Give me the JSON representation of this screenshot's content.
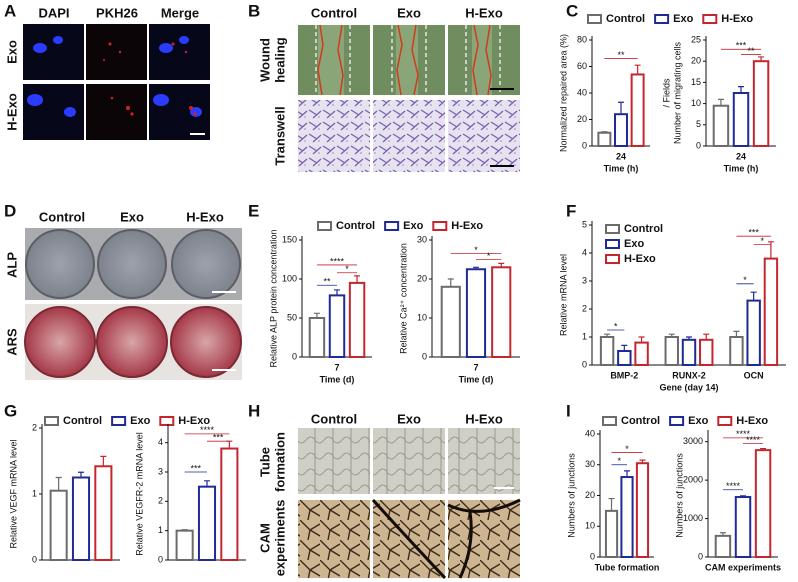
{
  "figure": {
    "A": {
      "letter": "A",
      "columns": [
        "DAPI",
        "PKH26",
        "Merge"
      ],
      "rows": [
        "Exo",
        "H-Exo"
      ]
    },
    "B": {
      "letter": "B",
      "columns": [
        "Control",
        "Exo",
        "H-Exo"
      ],
      "rows": [
        [
          "Wound",
          "healing"
        ],
        [
          "Transwell"
        ]
      ]
    },
    "C": {
      "letter": "C"
    },
    "D": {
      "letter": "D",
      "columns": [
        "Control",
        "Exo",
        "H-Exo"
      ],
      "rows": [
        "ALP",
        "ARS"
      ]
    },
    "E": {
      "letter": "E"
    },
    "F": {
      "letter": "F"
    },
    "G": {
      "letter": "G"
    },
    "H": {
      "letter": "H",
      "columns": [
        "Control",
        "Exo",
        "H-Exo"
      ],
      "rows": [
        [
          "Tube",
          "formation"
        ],
        [
          "CAM",
          "experiments"
        ]
      ]
    },
    "I": {
      "letter": "I"
    }
  },
  "chart_data": [
    {
      "type": "bar",
      "ylabel": "Normalized repaired area (%)",
      "xlabel": "Time (h)",
      "categories": [
        "24"
      ],
      "legend": "top",
      "series": [
        {
          "name": "Control",
          "color": "#6b6b6b",
          "values": [
            10
          ],
          "errors": [
            0.8
          ]
        },
        {
          "name": "Exo",
          "color": "#1f2a96",
          "values": [
            24
          ],
          "errors": [
            9
          ]
        },
        {
          "name": "H-Exo",
          "color": "#c4262e",
          "values": [
            54
          ],
          "errors": [
            7
          ]
        }
      ],
      "ylim": [
        0,
        80
      ],
      "yticks": [
        0,
        20,
        40,
        60,
        80
      ],
      "annotations": [
        {
          "label": "**",
          "pair": [
            "Control",
            "H-Exo"
          ],
          "y": 66
        }
      ]
    },
    {
      "type": "bar",
      "ylabel": [
        "Number of migrating cells",
        "/ Fields"
      ],
      "xlabel": "Time (h)",
      "categories": [
        "24"
      ],
      "series": [
        {
          "name": "Control",
          "color": "#6b6b6b",
          "values": [
            9.5
          ],
          "errors": [
            1.5
          ]
        },
        {
          "name": "Exo",
          "color": "#1f2a96",
          "values": [
            12.5
          ],
          "errors": [
            1.5
          ]
        },
        {
          "name": "H-Exo",
          "color": "#c4262e",
          "values": [
            20
          ],
          "errors": [
            1
          ]
        }
      ],
      "ylim": [
        0,
        25
      ],
      "yticks": [
        0,
        5,
        10,
        15,
        20,
        25
      ],
      "annotations": [
        {
          "label": "***",
          "pair": [
            "Control",
            "H-Exo"
          ],
          "y": 22.8
        },
        {
          "label": "**",
          "pair": [
            "Exo",
            "H-Exo"
          ],
          "y": 21.6
        }
      ]
    },
    {
      "type": "bar",
      "ylabel": "Relative ALP protein concentration",
      "xlabel": "Time (d)",
      "categories": [
        "7"
      ],
      "legend": "top",
      "series": [
        {
          "name": "Control",
          "color": "#6b6b6b",
          "values": [
            50
          ],
          "errors": [
            6
          ]
        },
        {
          "name": "Exo",
          "color": "#1f2a96",
          "values": [
            79
          ],
          "errors": [
            7
          ]
        },
        {
          "name": "H-Exo",
          "color": "#c4262e",
          "values": [
            95
          ],
          "errors": [
            9
          ]
        }
      ],
      "ylim": [
        0,
        150
      ],
      "yticks": [
        0,
        50,
        100,
        150
      ],
      "annotations": [
        {
          "label": "****",
          "pair": [
            "Control",
            "H-Exo"
          ],
          "y": 118
        },
        {
          "label": "*",
          "pair": [
            "Exo",
            "H-Exo"
          ],
          "y": 108
        },
        {
          "label": "**",
          "pair": [
            "Control",
            "Exo"
          ],
          "y": 92
        }
      ]
    },
    {
      "type": "bar",
      "ylabel": "Relative Ca²⁺ concentration",
      "xlabel": "Time (d)",
      "categories": [
        "7"
      ],
      "series": [
        {
          "name": "Control",
          "color": "#6b6b6b",
          "values": [
            18
          ],
          "errors": [
            2
          ]
        },
        {
          "name": "Exo",
          "color": "#1f2a96",
          "values": [
            22.5
          ],
          "errors": [
            0.5
          ]
        },
        {
          "name": "H-Exo",
          "color": "#c4262e",
          "values": [
            23
          ],
          "errors": [
            1
          ]
        }
      ],
      "ylim": [
        0,
        30
      ],
      "yticks": [
        0,
        10,
        20,
        30
      ],
      "annotations": [
        {
          "label": "*",
          "pair": [
            "Control",
            "H-Exo"
          ],
          "y": 26.5
        },
        {
          "label": "*",
          "pair": [
            "Exo",
            "H-Exo"
          ],
          "y": 25
        }
      ]
    },
    {
      "type": "bar",
      "ylabel": "Relative mRNA level",
      "xlabel": "Gene (day 14)",
      "categories": [
        "BMP-2",
        "RUNX-2",
        "OCN"
      ],
      "legend": "upper left",
      "series": [
        {
          "name": "Control",
          "color": "#6b6b6b",
          "values": [
            1,
            1,
            1
          ],
          "errors": [
            0.1,
            0.1,
            0.2
          ]
        },
        {
          "name": "Exo",
          "color": "#1f2a96",
          "values": [
            0.5,
            0.9,
            2.3
          ],
          "errors": [
            0.2,
            0.1,
            0.3
          ]
        },
        {
          "name": "H-Exo",
          "color": "#c4262e",
          "values": [
            0.8,
            0.9,
            3.8
          ],
          "errors": [
            0.2,
            0.2,
            0.6
          ]
        }
      ],
      "ylim": [
        0,
        5
      ],
      "yticks": [
        0,
        1,
        2,
        3,
        4,
        5
      ],
      "annotations": [
        {
          "label": "*",
          "pair": [
            "Control",
            "Exo"
          ],
          "category": "BMP-2",
          "y": 1.25
        },
        {
          "label": "***",
          "pair": [
            "Control",
            "H-Exo"
          ],
          "category": "OCN",
          "y": 4.6
        },
        {
          "label": "*",
          "pair": [
            "Exo",
            "H-Exo"
          ],
          "category": "OCN",
          "y": 4.3
        },
        {
          "label": "*",
          "pair": [
            "Control",
            "Exo"
          ],
          "category": "OCN",
          "y": 2.9
        }
      ]
    },
    {
      "type": "bar",
      "ylabel": "Relative VEGF mRNA level",
      "categories": [
        null
      ],
      "legend": "top",
      "series": [
        {
          "name": "Control",
          "color": "#6b6b6b",
          "values": [
            1.05
          ],
          "errors": [
            0.2
          ]
        },
        {
          "name": "Exo",
          "color": "#1f2a96",
          "values": [
            1.25
          ],
          "errors": [
            0.08
          ]
        },
        {
          "name": "H-Exo",
          "color": "#c4262e",
          "values": [
            1.42
          ],
          "errors": [
            0.15
          ]
        }
      ],
      "ylim": [
        0,
        2
      ],
      "yticks": [
        0,
        1,
        2
      ],
      "annotations": []
    },
    {
      "type": "bar",
      "ylabel": "Relative VEGFR-2 mRNA level",
      "categories": [
        null
      ],
      "series": [
        {
          "name": "Control",
          "color": "#6b6b6b",
          "values": [
            1
          ],
          "errors": [
            0.03
          ]
        },
        {
          "name": "Exo",
          "color": "#1f2a96",
          "values": [
            2.5
          ],
          "errors": [
            0.2
          ]
        },
        {
          "name": "H-Exo",
          "color": "#c4262e",
          "values": [
            3.8
          ],
          "errors": [
            0.25
          ]
        }
      ],
      "ylim": [
        0,
        4.5
      ],
      "yticks": [
        0,
        1,
        2,
        3,
        4
      ],
      "annotations": [
        {
          "label": "***",
          "pair": [
            "Control",
            "Exo"
          ],
          "y": 3.0
        },
        {
          "label": "****",
          "pair": [
            "Control",
            "H-Exo"
          ],
          "y": 4.3
        },
        {
          "label": "***",
          "pair": [
            "Exo",
            "H-Exo"
          ],
          "y": 4.05
        }
      ]
    },
    {
      "type": "bar",
      "ylabel": "Numbers of junctions",
      "categories": [
        "Tube formation"
      ],
      "legend": "top",
      "series": [
        {
          "name": "Control",
          "color": "#6b6b6b",
          "values": [
            15
          ],
          "errors": [
            4
          ]
        },
        {
          "name": "Exo",
          "color": "#1f2a96",
          "values": [
            26
          ],
          "errors": [
            2
          ]
        },
        {
          "name": "H-Exo",
          "color": "#c4262e",
          "values": [
            30.5
          ],
          "errors": [
            1
          ]
        }
      ],
      "ylim": [
        0,
        40
      ],
      "yticks": [
        0,
        10,
        20,
        30,
        40
      ],
      "annotations": [
        {
          "label": "*",
          "pair": [
            "Control",
            "H-Exo"
          ],
          "y": 34
        },
        {
          "label": "*",
          "pair": [
            "Control",
            "Exo"
          ],
          "y": 30
        }
      ]
    },
    {
      "type": "bar",
      "ylabel": "Numbers of junctions",
      "categories": [
        "CAM experiments"
      ],
      "series": [
        {
          "name": "Control",
          "color": "#6b6b6b",
          "values": [
            550
          ],
          "errors": [
            80
          ]
        },
        {
          "name": "Exo",
          "color": "#1f2a96",
          "values": [
            1560
          ],
          "errors": [
            30
          ]
        },
        {
          "name": "H-Exo",
          "color": "#c4262e",
          "values": [
            2780
          ],
          "errors": [
            40
          ]
        }
      ],
      "ylim": [
        0,
        3200
      ],
      "yticks": [
        0,
        1000,
        2000,
        3000
      ],
      "annotations": [
        {
          "label": "****",
          "pair": [
            "Control",
            "Exo"
          ],
          "y": 1750
        },
        {
          "label": "****",
          "pair": [
            "Control",
            "H-Exo"
          ],
          "y": 3100
        },
        {
          "label": "****",
          "pair": [
            "Exo",
            "H-Exo"
          ],
          "y": 2950
        }
      ]
    }
  ]
}
